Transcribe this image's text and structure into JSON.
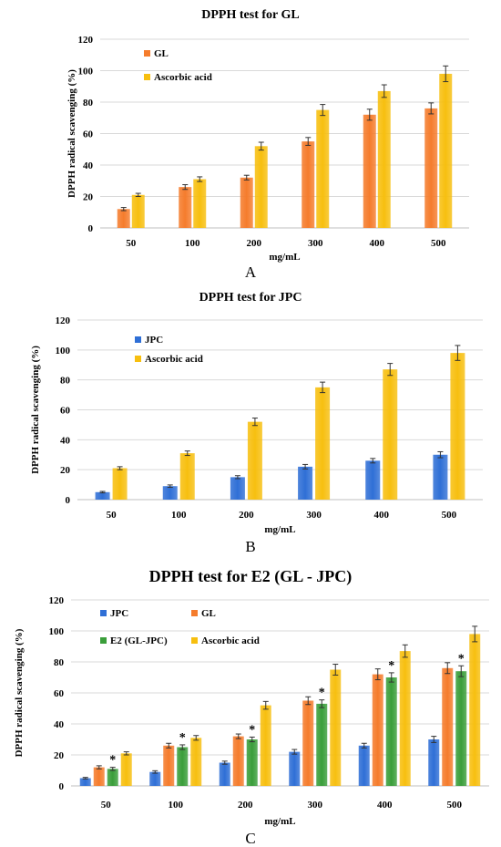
{
  "colors": {
    "JPC": "#2f6fd6",
    "GL": "#f57c2c",
    "E2 (GL-JPC)": "#3a9e3a",
    "Ascorbic acid": "#f7bf0f",
    "grid": "#d9d9d9",
    "axis": "#bfbfbf"
  },
  "chart_data": [
    {
      "type": "bar",
      "title": "DPPH test for GL",
      "panel_label": "A",
      "xlabel": "mg/mL",
      "ylabel": "DPPH radical scavenging (%)",
      "categories": [
        "50",
        "100",
        "200",
        "300",
        "400",
        "500"
      ],
      "ylim": [
        0,
        120
      ],
      "yticks": [
        "0",
        "20",
        "40",
        "60",
        "80",
        "100",
        "120"
      ],
      "grid": true,
      "legend_position": "top-left",
      "series": [
        {
          "name": "GL",
          "color_key": "GL",
          "values": [
            12,
            26,
            32,
            55,
            72,
            76
          ],
          "errors": [
            1,
            1.5,
            1.5,
            2.5,
            3.5,
            3.5
          ]
        },
        {
          "name": "Ascorbic acid",
          "color_key": "Ascorbic acid",
          "values": [
            21,
            31,
            52,
            75,
            87,
            98
          ],
          "errors": [
            1,
            1.5,
            2.5,
            3.5,
            4,
            5
          ]
        }
      ]
    },
    {
      "type": "bar",
      "title": "DPPH test for JPC",
      "panel_label": "B",
      "xlabel": "mg/mL",
      "ylabel": "DPPH radical scavenging (%)",
      "categories": [
        "50",
        "100",
        "200",
        "300",
        "400",
        "500"
      ],
      "ylim": [
        0,
        120
      ],
      "yticks": [
        "0",
        "20",
        "40",
        "60",
        "80",
        "100",
        "120"
      ],
      "grid": true,
      "legend_position": "top-left",
      "series": [
        {
          "name": "JPC",
          "color_key": "JPC",
          "values": [
            5,
            9,
            15,
            22,
            26,
            30
          ],
          "errors": [
            0.5,
            0.8,
            1,
            1.5,
            1.5,
            2
          ]
        },
        {
          "name": "Ascorbic acid",
          "color_key": "Ascorbic acid",
          "values": [
            21,
            31,
            52,
            75,
            87,
            98
          ],
          "errors": [
            1,
            1.5,
            2.5,
            3.5,
            4,
            5
          ]
        }
      ]
    },
    {
      "type": "bar",
      "title": "DPPH test for E2 (GL - JPC)",
      "panel_label": "C",
      "xlabel": "mg/mL",
      "ylabel": "DPPH radical scavenging (%)",
      "categories": [
        "50",
        "100",
        "200",
        "300",
        "400",
        "500"
      ],
      "ylim": [
        0,
        120
      ],
      "yticks": [
        "0",
        "20",
        "40",
        "60",
        "80",
        "100",
        "120"
      ],
      "grid": true,
      "legend_position": "top-left",
      "significance_marker": "*",
      "significance_series": "E2 (GL-JPC)",
      "series": [
        {
          "name": "JPC",
          "color_key": "JPC",
          "values": [
            5,
            9,
            15,
            22,
            26,
            30
          ],
          "errors": [
            0.5,
            0.8,
            1,
            1.5,
            1.5,
            2
          ]
        },
        {
          "name": "GL",
          "color_key": "GL",
          "values": [
            12,
            26,
            32,
            55,
            72,
            76
          ],
          "errors": [
            1,
            1.5,
            1.5,
            2.5,
            3.5,
            3.5
          ]
        },
        {
          "name": "E2 (GL-JPC)",
          "color_key": "E2 (GL-JPC)",
          "values": [
            11,
            25,
            30,
            53,
            70,
            74
          ],
          "errors": [
            1,
            1.5,
            1.5,
            2.5,
            3,
            3.5
          ]
        },
        {
          "name": "Ascorbic acid",
          "color_key": "Ascorbic acid",
          "values": [
            21,
            31,
            52,
            75,
            87,
            98
          ],
          "errors": [
            1,
            1.5,
            2.5,
            3.5,
            4,
            5
          ]
        }
      ]
    }
  ]
}
